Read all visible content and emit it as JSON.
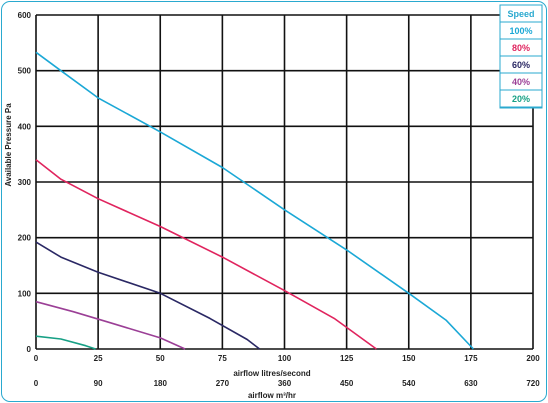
{
  "chart_data": {
    "type": "line",
    "xlabel": "airflow litres/second",
    "x2label": "airflow m³/hr",
    "ylabel": "Available Pressure Pa",
    "xlim": [
      0,
      200
    ],
    "ylim": [
      0,
      600
    ],
    "x_ticks": [
      "0",
      "25",
      "50",
      "75",
      "100",
      "125",
      "150",
      "175",
      "200"
    ],
    "x2_ticks": [
      "0",
      "90",
      "180",
      "270",
      "360",
      "450",
      "540",
      "630",
      "720"
    ],
    "y_ticks": [
      "0",
      "100",
      "200",
      "300",
      "400",
      "500",
      "600"
    ],
    "grid": true,
    "legend_title": "Speed",
    "legend_position": "top-right",
    "series": [
      {
        "name": "100%",
        "color": "#1ba8d6",
        "points": [
          [
            0,
            533
          ],
          [
            10,
            500
          ],
          [
            25,
            451
          ],
          [
            50,
            390
          ],
          [
            75,
            326
          ],
          [
            100,
            250
          ],
          [
            125,
            178
          ],
          [
            150,
            100
          ],
          [
            165,
            52
          ],
          [
            176,
            0
          ]
        ]
      },
      {
        "name": "80%",
        "color": "#e0245e",
        "points": [
          [
            0,
            340
          ],
          [
            10,
            305
          ],
          [
            25,
            270
          ],
          [
            50,
            220
          ],
          [
            75,
            165
          ],
          [
            100,
            105
          ],
          [
            120,
            55
          ],
          [
            137,
            0
          ]
        ]
      },
      {
        "name": "60%",
        "color": "#2a2864",
        "points": [
          [
            0,
            192
          ],
          [
            10,
            165
          ],
          [
            25,
            138
          ],
          [
            50,
            100
          ],
          [
            70,
            55
          ],
          [
            85,
            17
          ],
          [
            90,
            0
          ]
        ]
      },
      {
        "name": "40%",
        "color": "#9b3f96",
        "points": [
          [
            0,
            85
          ],
          [
            15,
            67
          ],
          [
            30,
            47
          ],
          [
            50,
            20
          ],
          [
            60,
            0
          ]
        ]
      },
      {
        "name": "20%",
        "color": "#17a085",
        "points": [
          [
            0,
            23
          ],
          [
            10,
            18
          ],
          [
            20,
            6
          ],
          [
            24,
            0
          ]
        ]
      }
    ]
  }
}
